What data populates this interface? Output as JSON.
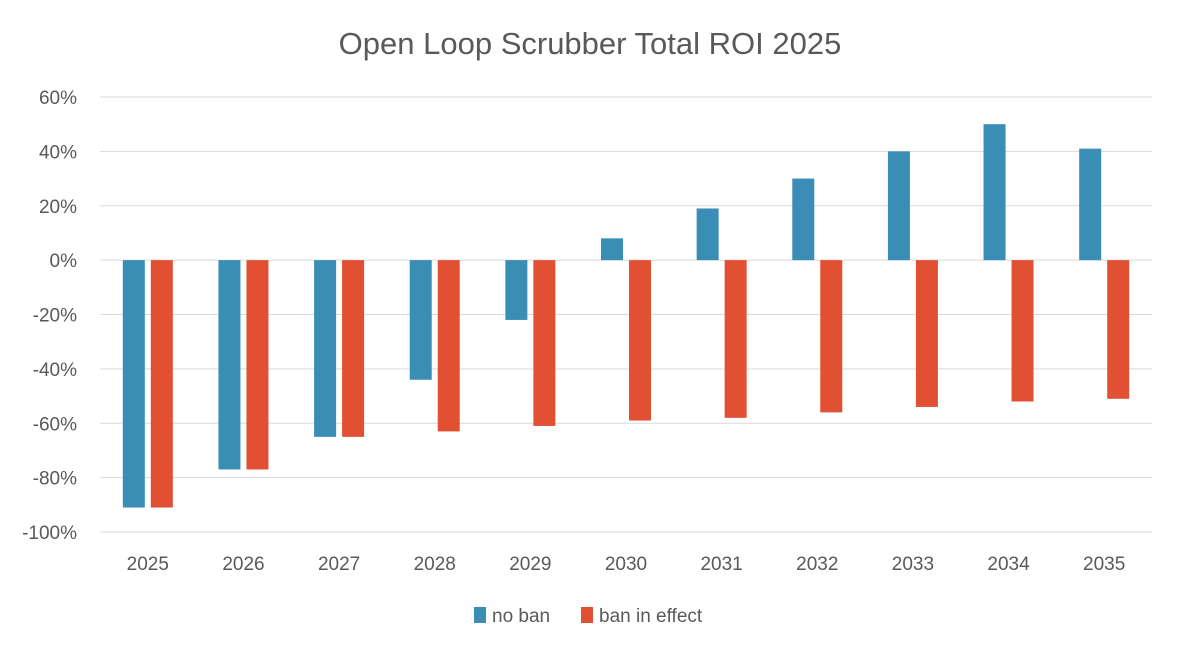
{
  "chart_data": {
    "type": "bar",
    "title": "Open Loop Scrubber Total ROI 2025",
    "xlabel": "",
    "ylabel": "",
    "ylim": [
      -100,
      60
    ],
    "y_ticks": [
      60,
      40,
      20,
      0,
      -20,
      -40,
      -60,
      -80,
      -100
    ],
    "y_tick_labels": [
      "60%",
      "40%",
      "20%",
      "0%",
      "-20%",
      "-40%",
      "-60%",
      "-80%",
      "-100%"
    ],
    "categories": [
      "2025",
      "2026",
      "2027",
      "2028",
      "2029",
      "2030",
      "2031",
      "2032",
      "2033",
      "2034",
      "2035"
    ],
    "series": [
      {
        "name": "no ban",
        "color": "#3a8db5",
        "values": [
          -91,
          -77,
          -65,
          -44,
          -22,
          8,
          19,
          30,
          40,
          50,
          41
        ]
      },
      {
        "name": "ban in effect",
        "color": "#e25033",
        "values": [
          -91,
          -77,
          -65,
          -63,
          -61,
          -59,
          -58,
          -56,
          -54,
          -52,
          -51
        ]
      }
    ],
    "grid": true,
    "legend_position": "bottom"
  }
}
